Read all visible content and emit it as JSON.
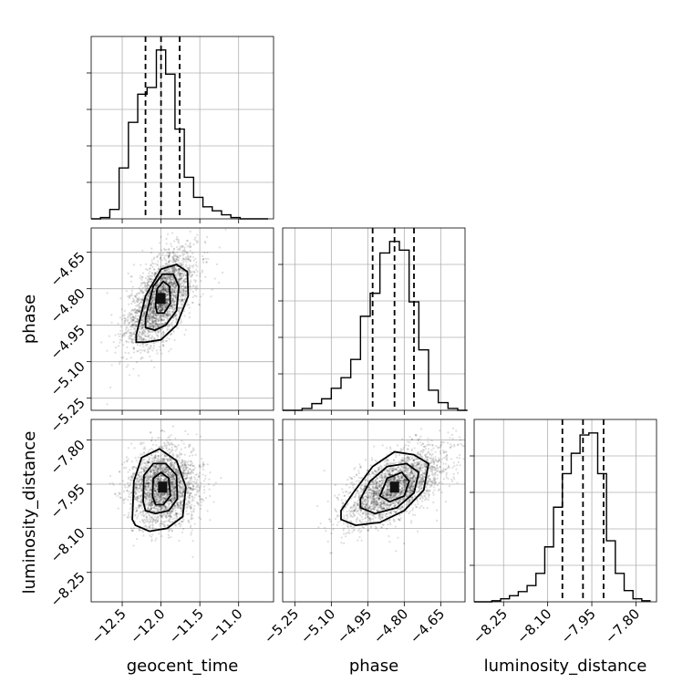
{
  "chart_data": {
    "type": "corner",
    "parameters": [
      "geocent_time",
      "phase",
      "luminosity_distance"
    ],
    "grid": true,
    "ranges": {
      "geocent_time": [
        -12.9,
        -10.55
      ],
      "phase": [
        -5.3,
        -4.55
      ],
      "luminosity_distance": [
        -8.35,
        -7.73
      ]
    },
    "ticks": {
      "geocent_time": {
        "values": [
          -12.5,
          -12.0,
          -11.5,
          -11.0
        ],
        "labels": [
          "−12.5",
          "−12.0",
          "−11.5",
          "−11.0"
        ]
      },
      "phase": {
        "values": [
          -5.25,
          -5.1,
          -4.95,
          -4.8,
          -4.65
        ],
        "labels": [
          "−5.25",
          "−5.10",
          "−4.95",
          "−4.80",
          "−4.65"
        ]
      },
      "luminosity_distance": {
        "values": [
          -8.25,
          -8.1,
          -7.95,
          -7.8
        ],
        "labels": [
          "−8.25",
          "−8.10",
          "−7.95",
          "−7.80"
        ]
      }
    },
    "histograms": [
      {
        "parameter": "geocent_time",
        "bin_edges": [
          -12.9,
          -12.78,
          -12.66,
          -12.54,
          -12.42,
          -12.3,
          -12.18,
          -12.06,
          -11.94,
          -11.82,
          -11.7,
          -11.58,
          -11.46,
          -11.34,
          -11.22,
          -11.1,
          -10.98,
          -10.86,
          -10.74,
          -10.62
        ],
        "counts": [
          0,
          1,
          7,
          38,
          72,
          93,
          98,
          126,
          108,
          67,
          31,
          16,
          9,
          6,
          3,
          1,
          0,
          0,
          0
        ],
        "quantiles": [
          -12.2,
          -12.0,
          -11.76
        ]
      },
      {
        "parameter": "phase",
        "bin_edges": [
          -5.3,
          -5.26,
          -5.22,
          -5.18,
          -5.14,
          -5.1,
          -5.06,
          -5.02,
          -4.98,
          -4.94,
          -4.9,
          -4.86,
          -4.82,
          -4.78,
          -4.74,
          -4.7,
          -4.66,
          -4.62,
          -4.58,
          -4.54
        ],
        "counts": [
          0,
          0,
          2,
          7,
          12,
          23,
          34,
          53,
          98,
          122,
          164,
          176,
          167,
          113,
          63,
          21,
          8,
          2,
          0
        ],
        "quantiles": [
          -4.93,
          -4.84,
          -4.76
        ]
      },
      {
        "parameter": "luminosity_distance",
        "bin_edges": [
          -8.35,
          -8.32,
          -8.29,
          -8.26,
          -8.23,
          -8.2,
          -8.17,
          -8.14,
          -8.11,
          -8.08,
          -8.05,
          -8.02,
          -7.99,
          -7.96,
          -7.93,
          -7.9,
          -7.87,
          -7.84,
          -7.81,
          -7.78,
          -7.75
        ],
        "counts": [
          0,
          0,
          1,
          3,
          6,
          10,
          16,
          28,
          54,
          93,
          126,
          146,
          164,
          166,
          126,
          60,
          28,
          11,
          3,
          1
        ],
        "quantiles": [
          -8.05,
          -7.98,
          -7.91
        ]
      }
    ],
    "scatter_panels": [
      {
        "x": "geocent_time",
        "y": "phase",
        "center": [
          -12.0,
          -4.84
        ],
        "sigma": [
          0.22,
          0.1
        ],
        "rho": 0.6,
        "n_points": 2600,
        "contours": [
          [
            [
              -12.32,
              -4.99
            ],
            [
              -12.2,
              -4.83
            ],
            [
              -12.0,
              -4.72
            ],
            [
              -11.8,
              -4.7
            ],
            [
              -11.66,
              -4.73
            ],
            [
              -11.65,
              -4.83
            ],
            [
              -11.8,
              -4.95
            ],
            [
              -12.0,
              -5.01
            ],
            [
              -12.2,
              -5.02
            ],
            [
              -12.32,
              -5.02
            ]
          ],
          [
            [
              -12.2,
              -4.92
            ],
            [
              -12.1,
              -4.79
            ],
            [
              -11.98,
              -4.74
            ],
            [
              -11.84,
              -4.74
            ],
            [
              -11.77,
              -4.79
            ],
            [
              -11.8,
              -4.89
            ],
            [
              -11.94,
              -4.95
            ],
            [
              -12.08,
              -4.97
            ],
            [
              -12.2,
              -4.96
            ]
          ],
          [
            [
              -12.07,
              -4.87
            ],
            [
              -12.05,
              -4.8
            ],
            [
              -11.97,
              -4.77
            ],
            [
              -11.89,
              -4.79
            ],
            [
              -11.88,
              -4.86
            ],
            [
              -11.96,
              -4.9
            ],
            [
              -12.05,
              -4.9
            ]
          ]
        ]
      },
      {
        "x": "geocent_time",
        "y": "luminosity_distance",
        "center": [
          -11.98,
          -7.96
        ],
        "sigma": [
          0.22,
          0.065
        ],
        "rho": 0.05,
        "n_points": 2600,
        "contours": [
          [
            [
              -12.37,
              -8.07
            ],
            [
              -12.35,
              -7.94
            ],
            [
              -12.25,
              -7.86
            ],
            [
              -12.02,
              -7.83
            ],
            [
              -11.8,
              -7.87
            ],
            [
              -11.68,
              -7.96
            ],
            [
              -11.72,
              -8.06
            ],
            [
              -11.92,
              -8.1
            ],
            [
              -12.15,
              -8.11
            ],
            [
              -12.33,
              -8.09
            ]
          ],
          [
            [
              -12.23,
              -8.01
            ],
            [
              -12.22,
              -7.92
            ],
            [
              -12.1,
              -7.88
            ],
            [
              -11.94,
              -7.88
            ],
            [
              -11.8,
              -7.92
            ],
            [
              -11.79,
              -8.0
            ],
            [
              -11.9,
              -8.04
            ],
            [
              -12.07,
              -8.05
            ],
            [
              -12.2,
              -8.04
            ]
          ],
          [
            [
              -12.11,
              -7.99
            ],
            [
              -12.1,
              -7.93
            ],
            [
              -12.0,
              -7.91
            ],
            [
              -11.9,
              -7.93
            ],
            [
              -11.88,
              -7.99
            ],
            [
              -11.97,
              -8.02
            ],
            [
              -12.07,
              -8.02
            ]
          ]
        ]
      },
      {
        "x": "phase",
        "y": "luminosity_distance",
        "center": [
          -4.84,
          -7.96
        ],
        "sigma": [
          0.1,
          0.065
        ],
        "rho": 0.6,
        "n_points": 2600,
        "contours": [
          [
            [
              -5.06,
              -8.04
            ],
            [
              -5.01,
              -7.98
            ],
            [
              -4.93,
              -7.89
            ],
            [
              -4.84,
              -7.84
            ],
            [
              -4.76,
              -7.85
            ],
            [
              -4.7,
              -7.88
            ],
            [
              -4.72,
              -7.97
            ],
            [
              -4.8,
              -8.04
            ],
            [
              -4.9,
              -8.08
            ],
            [
              -5.0,
              -8.09
            ],
            [
              -5.06,
              -8.07
            ]
          ],
          [
            [
              -4.98,
              -8.0
            ],
            [
              -4.94,
              -7.94
            ],
            [
              -4.87,
              -7.89
            ],
            [
              -4.79,
              -7.88
            ],
            [
              -4.74,
              -7.91
            ],
            [
              -4.76,
              -7.98
            ],
            [
              -4.83,
              -8.03
            ],
            [
              -4.92,
              -8.05
            ],
            [
              -4.98,
              -8.03
            ]
          ],
          [
            [
              -4.9,
              -7.99
            ],
            [
              -4.87,
              -7.93
            ],
            [
              -4.81,
              -7.91
            ],
            [
              -4.78,
              -7.94
            ],
            [
              -4.8,
              -7.99
            ],
            [
              -4.86,
              -8.01
            ]
          ]
        ]
      }
    ]
  }
}
